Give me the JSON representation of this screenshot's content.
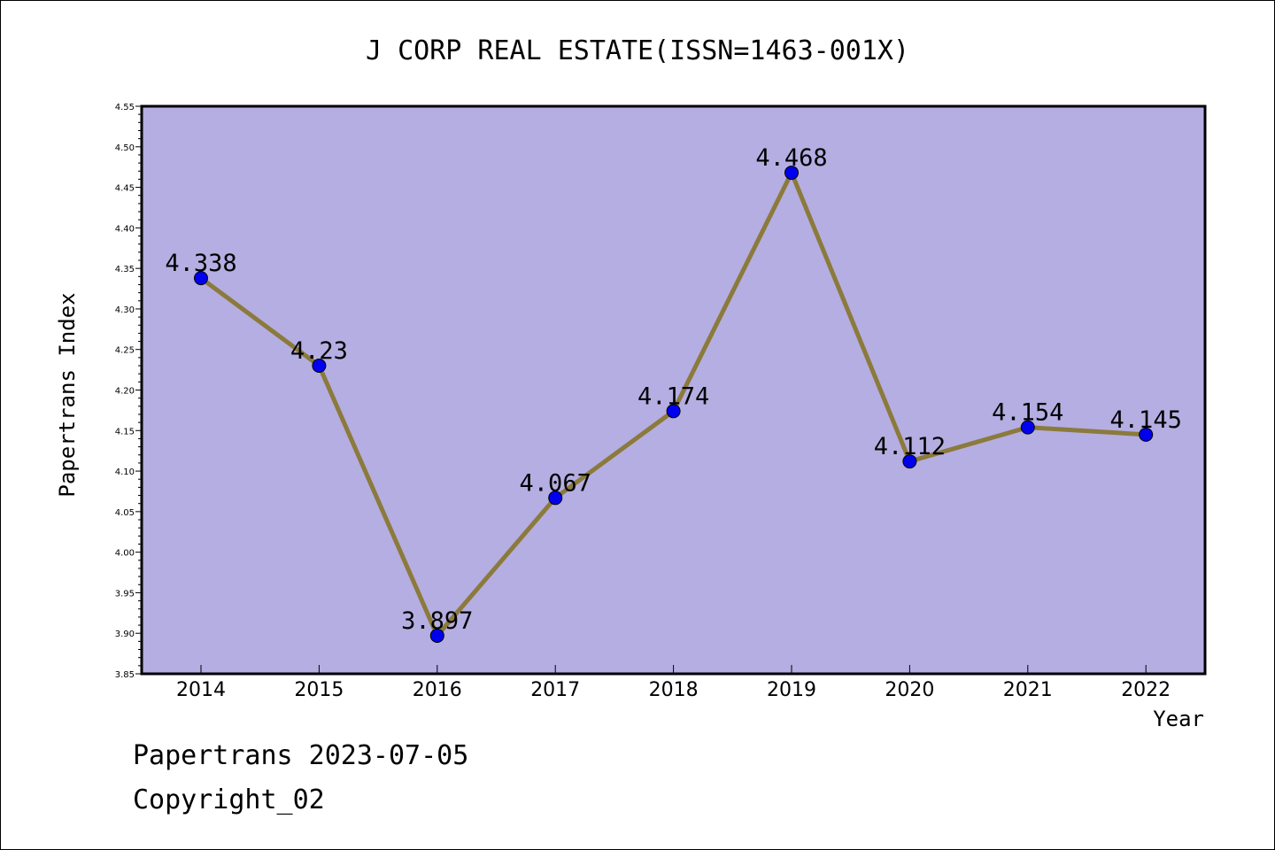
{
  "chart_data": {
    "type": "line",
    "title": "J CORP REAL ESTATE(ISSN=1463-001X)",
    "xlabel": "Year",
    "ylabel": "Papertrans Index",
    "categories": [
      "2014",
      "2015",
      "2016",
      "2017",
      "2018",
      "2019",
      "2020",
      "2021",
      "2022"
    ],
    "values": [
      4.338,
      4.23,
      3.897,
      4.067,
      4.174,
      4.468,
      4.112,
      4.154,
      4.145
    ],
    "data_labels": [
      "4.338",
      "4.23",
      "3.897",
      "4.067",
      "4.174",
      "4.468",
      "4.112",
      "4.154",
      "4.145"
    ],
    "ylim": [
      3.85,
      4.55
    ],
    "yticks": [
      "3.85",
      "3.90",
      "3.95",
      "4.00",
      "4.05",
      "4.10",
      "4.15",
      "4.20",
      "4.25",
      "4.30",
      "4.35",
      "4.40",
      "4.45",
      "4.50",
      "4.55"
    ],
    "grid": false,
    "colors": {
      "plot_background": "#b4aee2",
      "line": "#8b7a3b",
      "marker": "#0000ee"
    }
  },
  "footer": {
    "line1": "Papertrans 2023-07-05",
    "line2": "Copyright_02"
  }
}
